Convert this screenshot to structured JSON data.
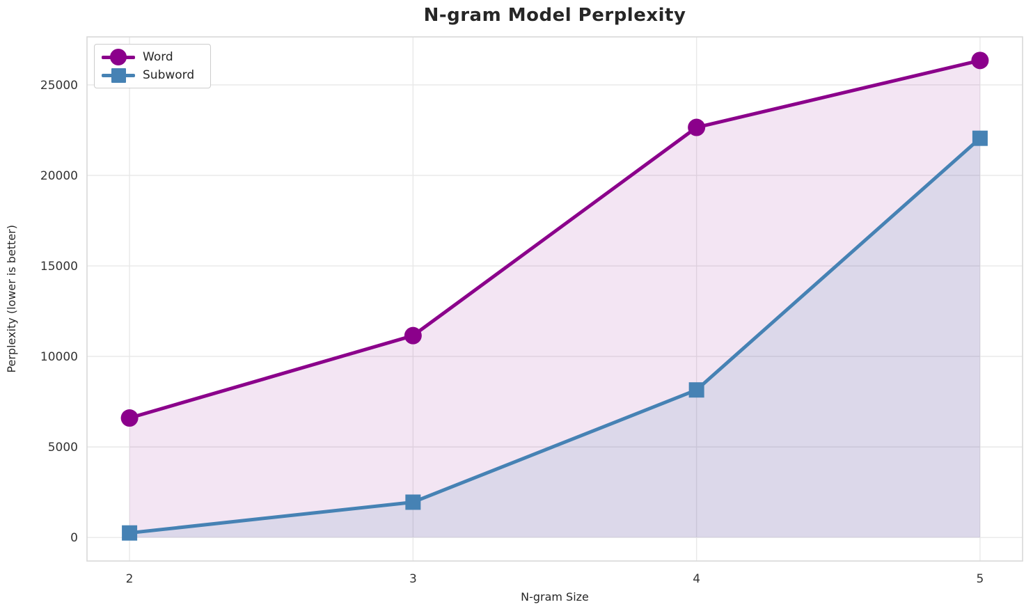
{
  "chart_data": {
    "type": "line",
    "title": "N-gram Model Perplexity",
    "xlabel": "N-gram Size",
    "ylabel": "Perplexity (lower is better)",
    "x": [
      2,
      3,
      4,
      5
    ],
    "series": [
      {
        "name": "Word",
        "marker": "circle",
        "color": "#8B008B",
        "fill_alpha": 0.1,
        "values": [
          6600,
          11150,
          22650,
          26350
        ]
      },
      {
        "name": "Subword",
        "marker": "square",
        "color": "#4682B4",
        "fill_alpha": 0.13,
        "values": [
          250,
          1950,
          8150,
          22050
        ]
      }
    ],
    "xticks": [
      2,
      3,
      4,
      5
    ],
    "yticks": [
      0,
      5000,
      10000,
      15000,
      20000,
      25000
    ],
    "xlim": [
      1.85,
      5.15
    ],
    "ylim": [
      -1300,
      27650
    ],
    "grid": true,
    "area_fill_to": 0,
    "legend_position": "upper-left"
  },
  "styles": {
    "background": "#FFFFFF",
    "grid_color": "#E8E8E8",
    "spine_color": "#D9D9D9",
    "text_color": "#262626",
    "tick_color": "#333333"
  }
}
